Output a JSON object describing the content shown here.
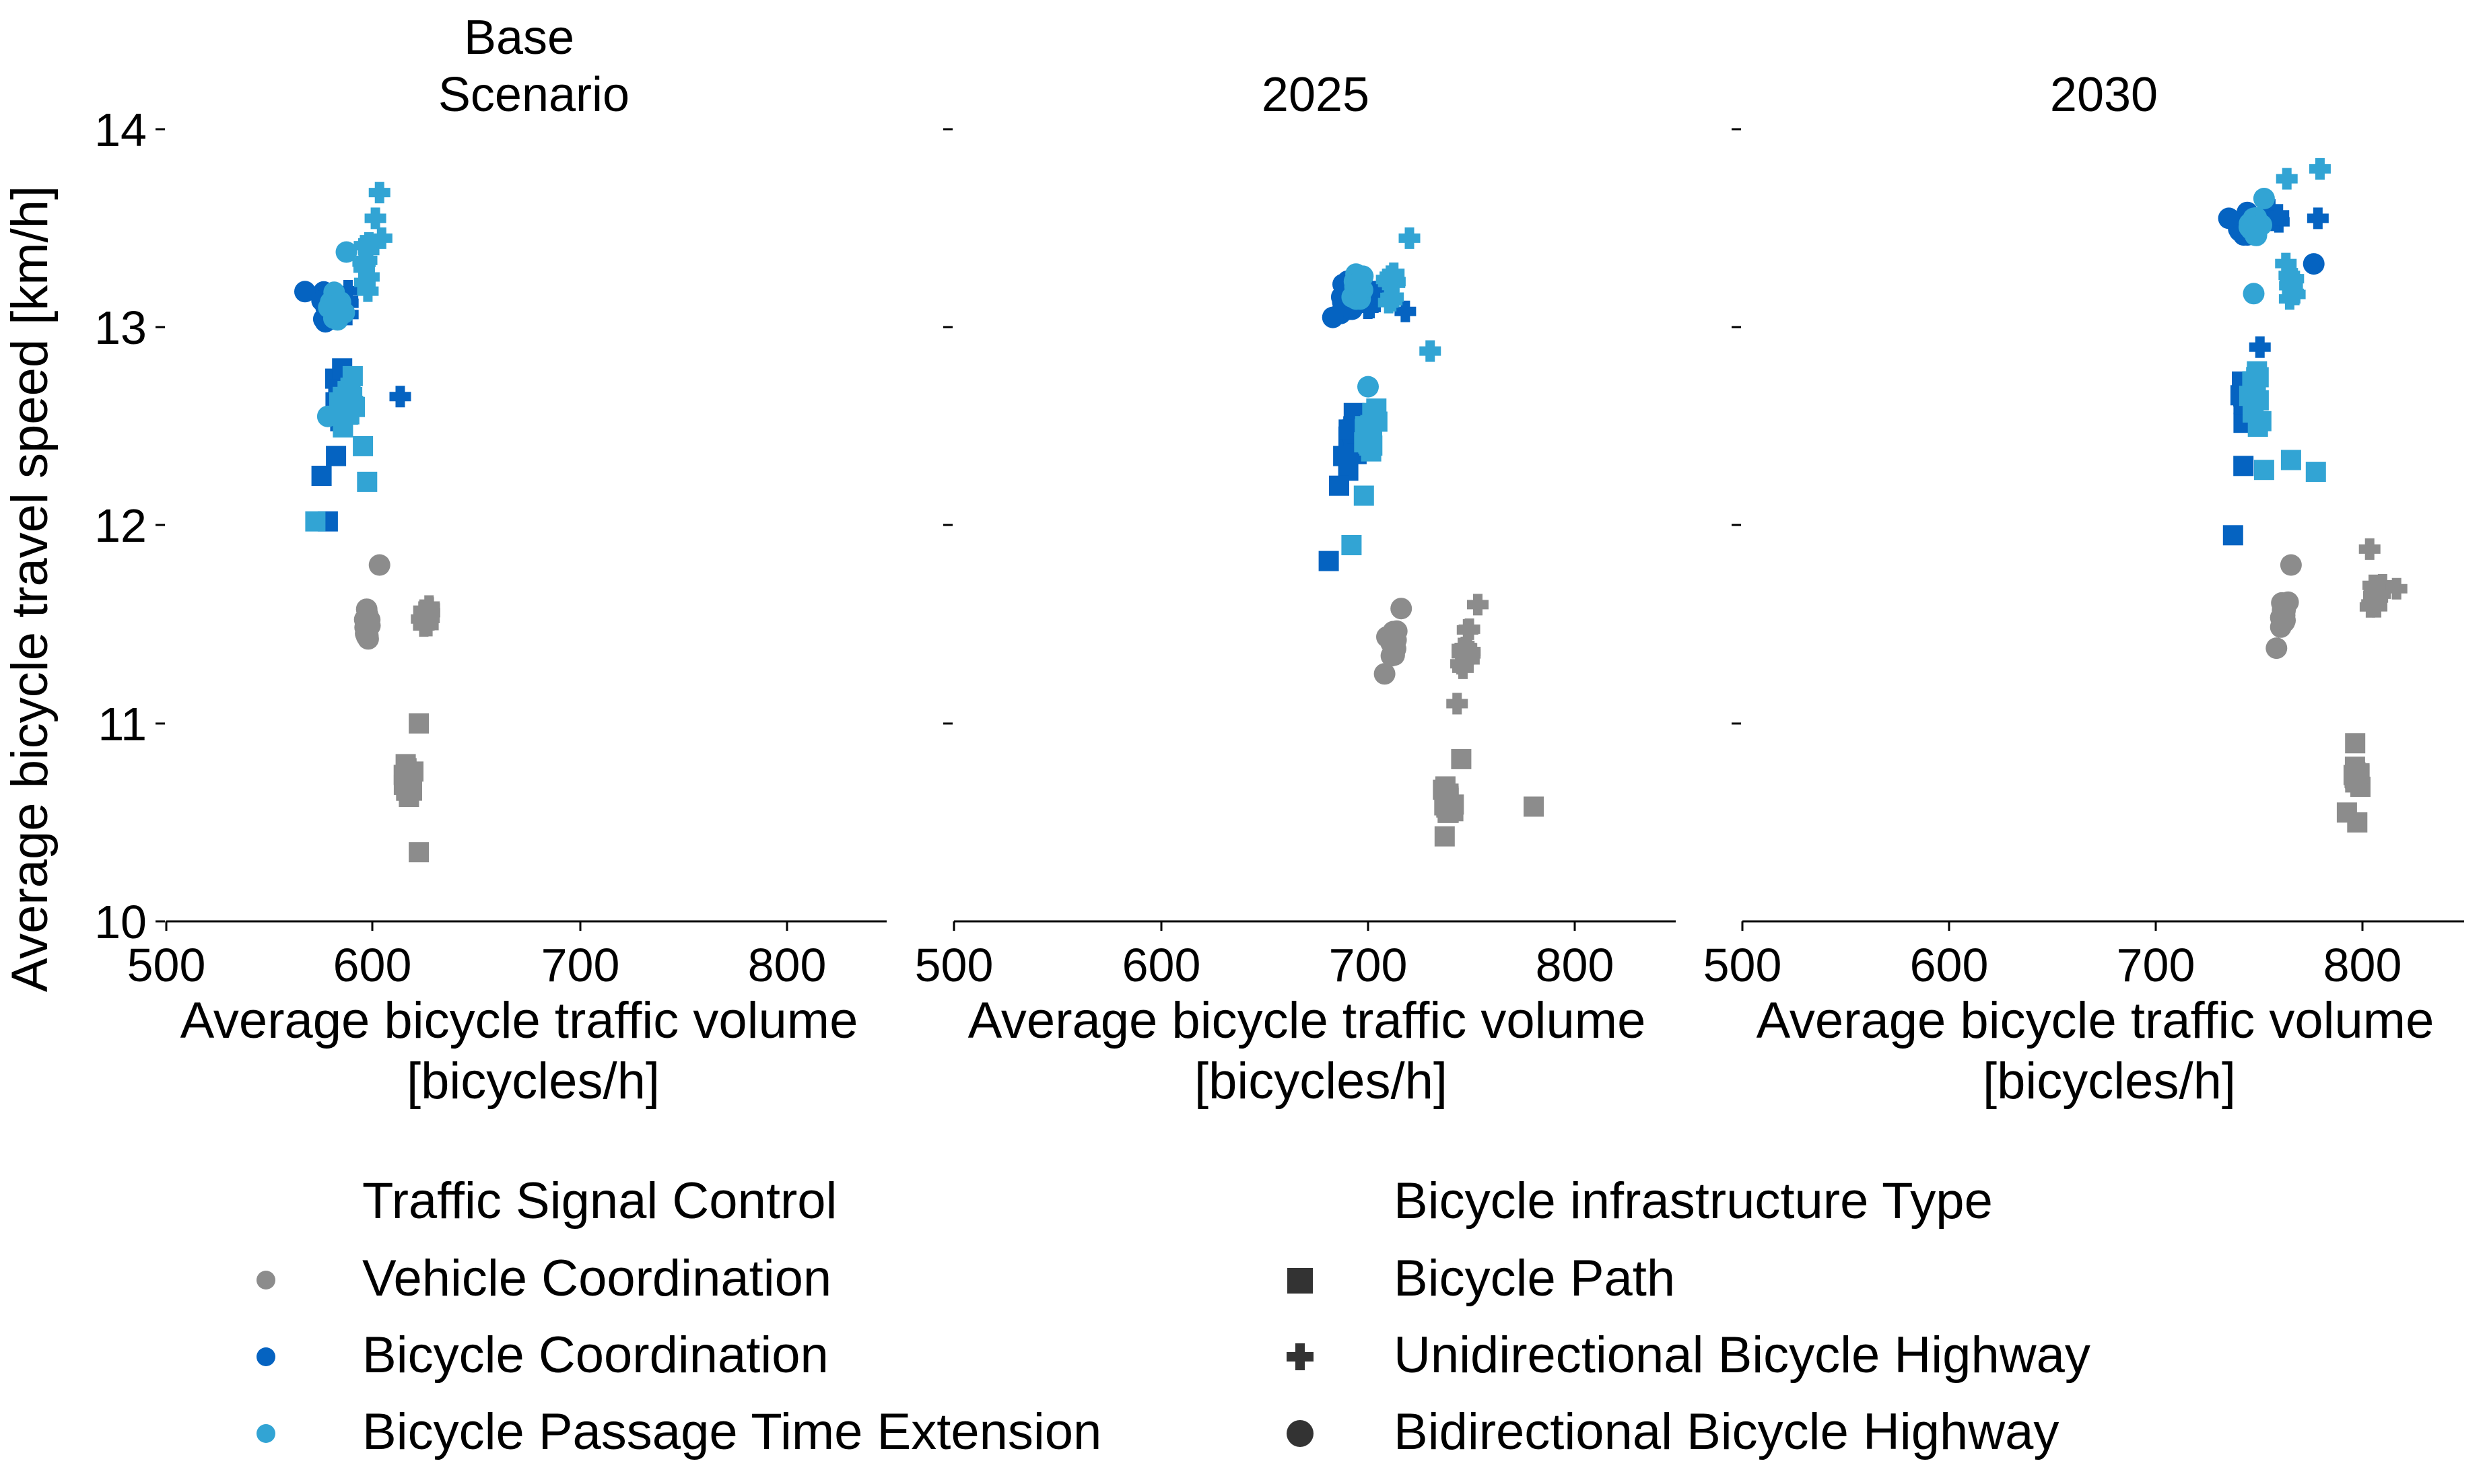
{
  "figure": {
    "ylabel": "Average bicycle travel speed [km/h]",
    "xlabel_line1": "Average bicycle traffic volume",
    "xlabel_line2": "[bicycles/h]"
  },
  "colors": {
    "Vehicle Coordination": "#8c8c8c",
    "Bicycle Coordination": "#0563c1",
    "Bicycle Passage Time Extension": "#32a4d4",
    "legend_marker": "#333333",
    "axis": "#000000"
  },
  "legend": {
    "control_title": "Traffic Signal Control",
    "control_items": [
      "Vehicle Coordination",
      "Bicycle Coordination",
      "Bicycle Passage Time Extension"
    ],
    "infra_title": "Bicycle infrastructure Type",
    "infra_items": [
      {
        "label": "Bicycle Path",
        "marker": "square"
      },
      {
        "label": "Unidirectional Bicycle Highway",
        "marker": "plus"
      },
      {
        "label": "Bidirectional Bicycle Highway",
        "marker": "circle"
      }
    ]
  },
  "chart_data": [
    {
      "type": "scatter",
      "title_lines": [
        "Base",
        "Scenario"
      ],
      "xlim": [
        500,
        850
      ],
      "ylim": [
        10,
        14
      ],
      "xticks": [
        500,
        600,
        700,
        800
      ],
      "yticks": [
        10,
        11,
        12,
        13,
        14
      ],
      "clusters": [
        {
          "control": "Vehicle Coordination",
          "marker": "square",
          "cx": 617,
          "cy": 10.7,
          "sx": 4,
          "sy": 0.15,
          "n": 16,
          "extra": [
            [
              622,
              10.35
            ],
            [
              622,
              11.0
            ]
          ]
        },
        {
          "control": "Vehicle Coordination",
          "marker": "plus",
          "cx": 626,
          "cy": 11.55,
          "sx": 4,
          "sy": 0.08,
          "n": 14,
          "extra": []
        },
        {
          "control": "Vehicle Coordination",
          "marker": "circle",
          "cx": 597,
          "cy": 11.5,
          "sx": 3,
          "sy": 0.12,
          "n": 14,
          "extra": [
            [
              603,
              11.8
            ]
          ]
        },
        {
          "control": "Bicycle Coordination",
          "marker": "square",
          "cx": 584,
          "cy": 12.65,
          "sx": 4,
          "sy": 0.18,
          "n": 12,
          "extra": [
            [
              575,
              12.25
            ],
            [
              578,
              12.02
            ],
            [
              582,
              12.35
            ]
          ]
        },
        {
          "control": "Bicycle Coordination",
          "marker": "plus",
          "cx": 588,
          "cy": 13.15,
          "sx": 5,
          "sy": 0.12,
          "n": 6,
          "extra": [
            [
              613,
              12.65
            ]
          ]
        },
        {
          "control": "Bicycle Coordination",
          "marker": "circle",
          "cx": 578,
          "cy": 13.1,
          "sx": 5,
          "sy": 0.12,
          "n": 16,
          "extra": [
            [
              567,
              13.18
            ]
          ]
        },
        {
          "control": "Bicycle Passage Time Extension",
          "marker": "square",
          "cx": 588,
          "cy": 12.65,
          "sx": 5,
          "sy": 0.2,
          "n": 14,
          "extra": [
            [
              572,
              12.02
            ],
            [
              597,
              12.22
            ],
            [
              595,
              12.4
            ]
          ]
        },
        {
          "control": "Bicycle Passage Time Extension",
          "marker": "plus",
          "cx": 597,
          "cy": 13.3,
          "sx": 3,
          "sy": 0.2,
          "n": 10,
          "extra": [
            [
              603,
              13.68
            ],
            [
              601,
              13.55
            ],
            [
              604,
              13.45
            ]
          ]
        },
        {
          "control": "Bicycle Passage Time Extension",
          "marker": "circle",
          "cx": 582,
          "cy": 13.1,
          "sx": 5,
          "sy": 0.12,
          "n": 16,
          "extra": [
            [
              587,
              13.38
            ],
            [
              578,
              12.55
            ]
          ]
        }
      ]
    },
    {
      "type": "scatter",
      "title_lines": [
        "2025"
      ],
      "xlim": [
        500,
        850
      ],
      "ylim": [
        10,
        14
      ],
      "xticks": [
        500,
        600,
        700,
        800
      ],
      "yticks": [
        10,
        11,
        12,
        13,
        14
      ],
      "clusters": [
        {
          "control": "Vehicle Coordination",
          "marker": "square",
          "cx": 739,
          "cy": 10.6,
          "sx": 4,
          "sy": 0.1,
          "n": 16,
          "extra": [
            [
              780,
              10.58
            ],
            [
              745,
              10.82
            ],
            [
              737,
              10.43
            ]
          ]
        },
        {
          "control": "Vehicle Coordination",
          "marker": "plus",
          "cx": 747,
          "cy": 11.35,
          "sx": 4,
          "sy": 0.14,
          "n": 14,
          "extra": [
            [
              743,
              11.1
            ],
            [
              753,
              11.6
            ]
          ]
        },
        {
          "control": "Vehicle Coordination",
          "marker": "circle",
          "cx": 712,
          "cy": 11.42,
          "sx": 4,
          "sy": 0.1,
          "n": 14,
          "extra": [
            [
              708,
              11.25
            ],
            [
              716,
              11.58
            ]
          ]
        },
        {
          "control": "Bicycle Coordination",
          "marker": "square",
          "cx": 692,
          "cy": 12.45,
          "sx": 4,
          "sy": 0.2,
          "n": 12,
          "extra": [
            [
              681,
              11.82
            ],
            [
              686,
              12.2
            ],
            [
              688,
              12.35
            ]
          ]
        },
        {
          "control": "Bicycle Coordination",
          "marker": "plus",
          "cx": 700,
          "cy": 13.15,
          "sx": 6,
          "sy": 0.12,
          "n": 6,
          "extra": [
            [
              718,
              13.08
            ]
          ]
        },
        {
          "control": "Bicycle Coordination",
          "marker": "circle",
          "cx": 690,
          "cy": 13.15,
          "sx": 4,
          "sy": 0.12,
          "n": 16,
          "extra": [
            [
              683,
              13.05
            ]
          ]
        },
        {
          "control": "Bicycle Passage Time Extension",
          "marker": "square",
          "cx": 702,
          "cy": 12.5,
          "sx": 5,
          "sy": 0.2,
          "n": 14,
          "extra": [
            [
              692,
              11.9
            ],
            [
              698,
              12.15
            ]
          ]
        },
        {
          "control": "Bicycle Passage Time Extension",
          "marker": "plus",
          "cx": 712,
          "cy": 13.2,
          "sx": 6,
          "sy": 0.12,
          "n": 10,
          "extra": [
            [
              730,
              12.88
            ],
            [
              720,
              13.45
            ]
          ]
        },
        {
          "control": "Bicycle Passage Time Extension",
          "marker": "circle",
          "cx": 695,
          "cy": 13.2,
          "sx": 5,
          "sy": 0.12,
          "n": 16,
          "extra": [
            [
              700,
              12.7
            ]
          ]
        }
      ]
    },
    {
      "type": "scatter",
      "title_lines": [
        "2030"
      ],
      "xlim": [
        500,
        850
      ],
      "ylim": [
        10,
        14
      ],
      "xticks": [
        500,
        600,
        700,
        800
      ],
      "yticks": [
        10,
        11,
        12,
        13,
        14
      ],
      "clusters": [
        {
          "control": "Vehicle Coordination",
          "marker": "square",
          "cx": 797,
          "cy": 10.72,
          "sx": 3,
          "sy": 0.1,
          "n": 14,
          "extra": [
            [
              792,
              10.55
            ],
            [
              797,
              10.5
            ],
            [
              796,
              10.9
            ]
          ]
        },
        {
          "control": "Vehicle Coordination",
          "marker": "plus",
          "cx": 806,
          "cy": 11.65,
          "sx": 4,
          "sy": 0.1,
          "n": 14,
          "extra": [
            [
              803,
              11.88
            ],
            [
              816,
              11.68
            ]
          ]
        },
        {
          "control": "Vehicle Coordination",
          "marker": "circle",
          "cx": 762,
          "cy": 11.55,
          "sx": 3,
          "sy": 0.1,
          "n": 14,
          "extra": [
            [
              758,
              11.38
            ],
            [
              765,
              11.8
            ]
          ]
        },
        {
          "control": "Bicycle Coordination",
          "marker": "square",
          "cx": 743,
          "cy": 12.6,
          "sx": 3,
          "sy": 0.2,
          "n": 12,
          "extra": [
            [
              737,
              11.95
            ],
            [
              742,
              12.3
            ]
          ]
        },
        {
          "control": "Bicycle Coordination",
          "marker": "plus",
          "cx": 758,
          "cy": 13.55,
          "sx": 6,
          "sy": 0.06,
          "n": 6,
          "extra": [
            [
              778,
              13.55
            ],
            [
              750,
              12.9
            ]
          ]
        },
        {
          "control": "Bicycle Coordination",
          "marker": "circle",
          "cx": 742,
          "cy": 13.5,
          "sx": 5,
          "sy": 0.09,
          "n": 16,
          "extra": [
            [
              776,
              13.32
            ],
            [
              735,
              13.55
            ]
          ]
        },
        {
          "control": "Bicycle Passage Time Extension",
          "marker": "square",
          "cx": 748,
          "cy": 12.6,
          "sx": 5,
          "sy": 0.2,
          "n": 14,
          "extra": [
            [
              765,
              12.33
            ],
            [
              777,
              12.27
            ],
            [
              752,
              12.28
            ]
          ]
        },
        {
          "control": "Bicycle Passage Time Extension",
          "marker": "plus",
          "cx": 765,
          "cy": 13.2,
          "sx": 5,
          "sy": 0.2,
          "n": 10,
          "extra": [
            [
              779,
              13.8
            ],
            [
              763,
              13.75
            ]
          ]
        },
        {
          "control": "Bicycle Passage Time Extension",
          "marker": "circle",
          "cx": 748,
          "cy": 13.5,
          "sx": 5,
          "sy": 0.1,
          "n": 16,
          "extra": [
            [
              747,
              13.17
            ],
            [
              752,
              13.65
            ]
          ]
        }
      ]
    }
  ]
}
